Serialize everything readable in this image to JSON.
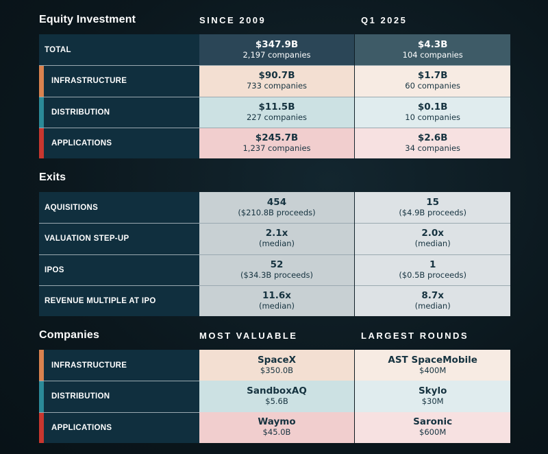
{
  "colors": {
    "infrastructure": "#d9824f",
    "distribution": "#2b8a98",
    "applications": "#c8372f"
  },
  "sections": [
    {
      "title": "Equity Investment",
      "col1": "SINCE 2009",
      "col2": "Q1 2025",
      "sep": true,
      "rows": [
        {
          "label": "TOTAL",
          "kind": "total",
          "c1": {
            "main": "$347.9B",
            "sub": "2,197 companies"
          },
          "c2": {
            "main": "$4.3B",
            "sub": "104 companies"
          }
        },
        {
          "label": "INFRASTRUCTURE",
          "kind": "infrastructure",
          "c1": {
            "main": "$90.7B",
            "sub": "733 companies"
          },
          "c2": {
            "main": "$1.7B",
            "sub": "60 companies"
          }
        },
        {
          "label": "DISTRIBUTION",
          "kind": "distribution",
          "c1": {
            "main": "$11.5B",
            "sub": "227 companies"
          },
          "c2": {
            "main": "$0.1B",
            "sub": "10 companies"
          }
        },
        {
          "label": "APPLICATIONS",
          "kind": "applications",
          "c1": {
            "main": "$245.7B",
            "sub": "1,237 companies"
          },
          "c2": {
            "main": "$2.6B",
            "sub": "34 companies"
          }
        }
      ]
    },
    {
      "title": "Exits",
      "col1": "",
      "col2": "",
      "sep": true,
      "rows": [
        {
          "label": "AQUISITIONS",
          "kind": "exit",
          "c1": {
            "main": "454",
            "sub": "($210.8B proceeds)"
          },
          "c2": {
            "main": "15",
            "sub": "($4.9B proceeds)"
          }
        },
        {
          "label": "VALUATION STEP-UP",
          "kind": "exit",
          "c1": {
            "main": "2.1x",
            "sub": "(median)"
          },
          "c2": {
            "main": "2.0x",
            "sub": "(median)"
          }
        },
        {
          "label": "IPOS",
          "kind": "exit",
          "c1": {
            "main": "52",
            "sub": "($34.3B proceeds)"
          },
          "c2": {
            "main": "1",
            "sub": "($0.5B proceeds)"
          }
        },
        {
          "label": "REVENUE MULTIPLE AT IPO",
          "kind": "exit",
          "c1": {
            "main": "11.6x",
            "sub": "(median)"
          },
          "c2": {
            "main": "8.7x",
            "sub": "(median)"
          }
        }
      ]
    },
    {
      "title": "Companies",
      "col1": "MOST VALUABLE",
      "col2": "LARGEST ROUNDS",
      "sep": false,
      "rows": [
        {
          "label": "INFRASTRUCTURE",
          "kind": "infrastructure",
          "c1": {
            "main": "SpaceX",
            "sub": "$350.0B"
          },
          "c2": {
            "main": "AST SpaceMobile",
            "sub": "$400M"
          }
        },
        {
          "label": "DISTRIBUTION",
          "kind": "distribution",
          "c1": {
            "main": "SandboxAQ",
            "sub": "$5.6B"
          },
          "c2": {
            "main": "Skylo",
            "sub": "$30M"
          }
        },
        {
          "label": "APPLICATIONS",
          "kind": "applications",
          "c1": {
            "main": "Waymo",
            "sub": "$45.0B"
          },
          "c2": {
            "main": "Saronic",
            "sub": "$600M"
          }
        }
      ]
    }
  ]
}
